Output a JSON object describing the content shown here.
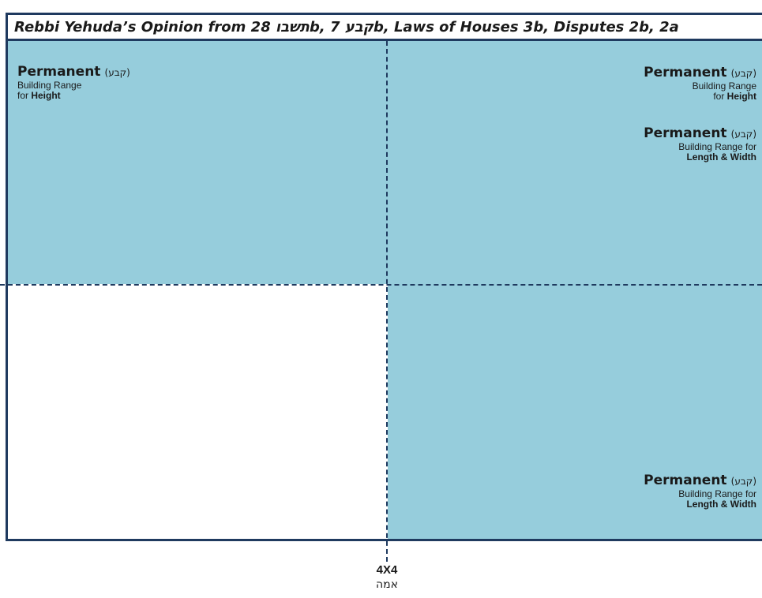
{
  "title": "Rebbi Yehuda’s Opinion from תשבו 28b, קבע 7b, Laws of Houses 3b, Disputes 2b, 2a",
  "colors": {
    "permanent_fill": "#96cddc",
    "border": "#1f3a5f",
    "background": "#ffffff"
  },
  "labels": {
    "top_left": {
      "heading": "Permanent",
      "hebrew": "(קבע)",
      "line1": "Building Range",
      "line2_prefix": "for ",
      "line2_bold": "Height"
    },
    "top_right_height": {
      "heading": "Permanent",
      "hebrew": "(קבע)",
      "line1": "Building Range",
      "line2_prefix": "for ",
      "line2_bold": "Height"
    },
    "top_right_length": {
      "heading": "Permanent",
      "hebrew": "(קבע)",
      "line1": "Building Range for",
      "line2_bold": "Length & Width"
    },
    "bottom_right_length": {
      "heading": "Permanent",
      "hebrew": "(קבע)",
      "line1": "Building Range for",
      "line2_bold": "Length & Width"
    }
  },
  "measure": {
    "dimension": "4X4",
    "unit": "אמה"
  }
}
